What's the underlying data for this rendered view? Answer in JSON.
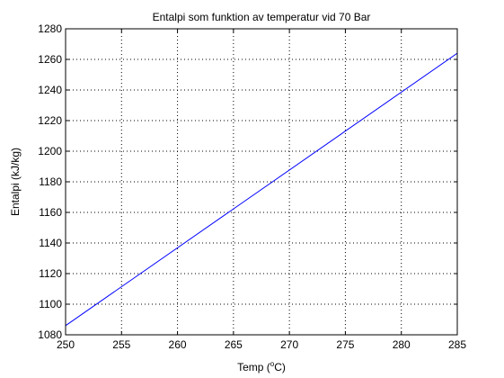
{
  "chart_data": {
    "type": "line",
    "title": "Entalpi som funktion av temperatur vid 70 Bar",
    "xlabel_prefix": "Temp (",
    "xlabel_sup": "o",
    "xlabel_suffix": "C)",
    "ylabel": "Entalpi (kJ/kg)",
    "xlim": [
      250,
      285
    ],
    "ylim": [
      1080,
      1280
    ],
    "xticks": [
      250,
      255,
      260,
      265,
      270,
      275,
      280,
      285
    ],
    "yticks": [
      1080,
      1100,
      1120,
      1140,
      1160,
      1180,
      1200,
      1220,
      1240,
      1260,
      1280
    ],
    "grid": true,
    "series": [
      {
        "color": "#0000ff",
        "x": [
          250,
          285
        ],
        "y": [
          1086,
          1264
        ]
      }
    ]
  }
}
